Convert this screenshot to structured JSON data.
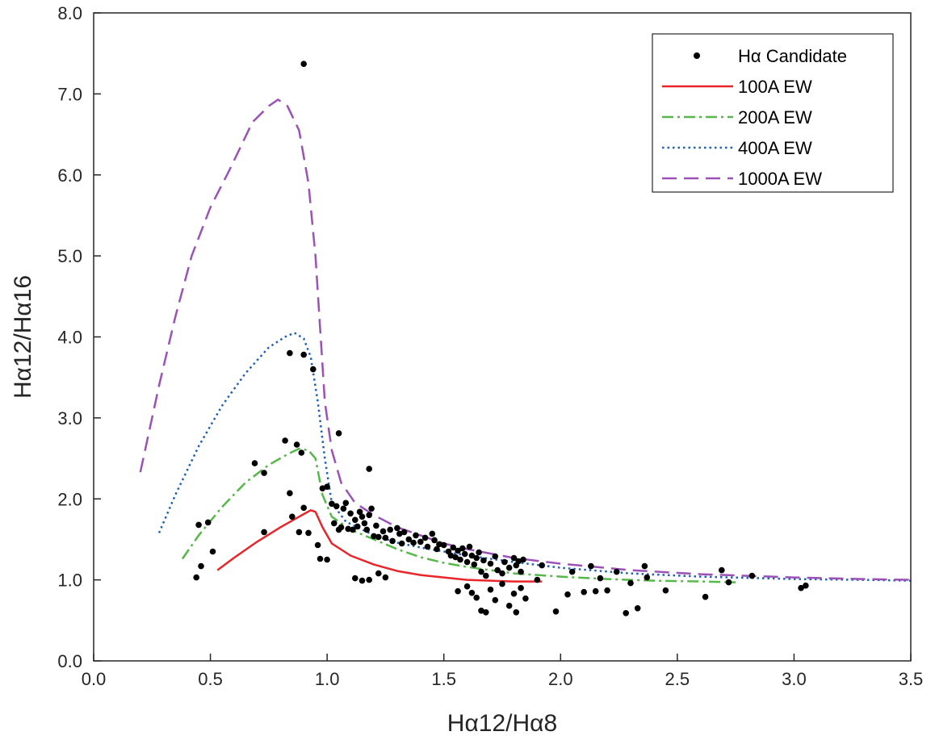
{
  "chart_data": {
    "type": "scatter",
    "title": "",
    "xlabel": "Hα12/Hα8",
    "ylabel": "Hα12/Hα16",
    "xlim": [
      0.0,
      3.5
    ],
    "ylim": [
      0.0,
      8.0
    ],
    "x_ticks": [
      "0.0",
      "0.5",
      "1.0",
      "1.5",
      "2.0",
      "2.5",
      "3.0",
      "3.5"
    ],
    "y_ticks": [
      "0.0",
      "1.0",
      "2.0",
      "3.0",
      "4.0",
      "5.0",
      "6.0",
      "7.0",
      "8.0"
    ],
    "grid": false,
    "legend_position": "top-right",
    "series": [
      {
        "name": "Hα Candidate",
        "kind": "points",
        "color": "#000000",
        "points": [
          [
            0.9,
            7.37
          ],
          [
            0.84,
            3.8
          ],
          [
            0.9,
            3.78
          ],
          [
            0.94,
            3.6
          ],
          [
            0.82,
            2.72
          ],
          [
            0.73,
            2.32
          ],
          [
            0.69,
            2.44
          ],
          [
            0.87,
            2.67
          ],
          [
            0.89,
            2.57
          ],
          [
            1.05,
            2.81
          ],
          [
            1.18,
            2.37
          ],
          [
            0.84,
            2.07
          ],
          [
            0.88,
            1.59
          ],
          [
            0.73,
            1.59
          ],
          [
            0.85,
            1.78
          ],
          [
            0.9,
            1.89
          ],
          [
            0.92,
            1.58
          ],
          [
            0.96,
            1.43
          ],
          [
            0.98,
            2.13
          ],
          [
            1.0,
            2.15
          ],
          [
            1.02,
            1.94
          ],
          [
            0.97,
            1.26
          ],
          [
            1.0,
            1.25
          ],
          [
            0.44,
            1.03
          ],
          [
            0.45,
            1.68
          ],
          [
            0.46,
            1.17
          ],
          [
            0.49,
            1.71
          ],
          [
            0.51,
            1.35
          ],
          [
            1.03,
            1.7
          ],
          [
            1.04,
            1.91
          ],
          [
            1.05,
            1.62
          ],
          [
            1.06,
            1.65
          ],
          [
            1.07,
            1.88
          ],
          [
            1.08,
            1.95
          ],
          [
            1.09,
            1.63
          ],
          [
            1.1,
            1.82
          ],
          [
            1.11,
            1.62
          ],
          [
            1.12,
            1.74
          ],
          [
            1.13,
            1.66
          ],
          [
            1.14,
            1.84
          ],
          [
            1.15,
            1.78
          ],
          [
            1.16,
            1.7
          ],
          [
            1.17,
            1.62
          ],
          [
            1.18,
            1.8
          ],
          [
            1.19,
            1.88
          ],
          [
            1.2,
            1.54
          ],
          [
            1.21,
            1.67
          ],
          [
            1.22,
            1.53
          ],
          [
            1.24,
            1.6
          ],
          [
            1.25,
            1.52
          ],
          [
            1.27,
            1.62
          ],
          [
            1.28,
            1.48
          ],
          [
            1.3,
            1.64
          ],
          [
            1.31,
            1.57
          ],
          [
            1.32,
            1.45
          ],
          [
            1.33,
            1.59
          ],
          [
            1.35,
            1.5
          ],
          [
            1.37,
            1.46
          ],
          [
            1.38,
            1.55
          ],
          [
            1.4,
            1.47
          ],
          [
            1.42,
            1.52
          ],
          [
            1.43,
            1.41
          ],
          [
            1.45,
            1.57
          ],
          [
            1.46,
            1.49
          ],
          [
            1.47,
            1.38
          ],
          [
            1.48,
            1.44
          ],
          [
            1.5,
            1.43
          ],
          [
            1.52,
            1.35
          ],
          [
            1.53,
            1.3
          ],
          [
            1.54,
            1.4
          ],
          [
            1.55,
            1.28
          ],
          [
            1.56,
            1.36
          ],
          [
            1.57,
            1.25
          ],
          [
            1.58,
            1.39
          ],
          [
            1.59,
            1.32
          ],
          [
            1.6,
            1.22
          ],
          [
            1.61,
            1.41
          ],
          [
            1.62,
            1.3
          ],
          [
            1.63,
            1.19
          ],
          [
            1.64,
            1.27
          ],
          [
            1.65,
            1.34
          ],
          [
            1.66,
            1.1
          ],
          [
            1.67,
            1.24
          ],
          [
            1.68,
            1.05
          ],
          [
            1.7,
            1.2
          ],
          [
            1.72,
            1.29
          ],
          [
            1.73,
            1.12
          ],
          [
            1.75,
            1.08
          ],
          [
            1.76,
            1.22
          ],
          [
            1.78,
            1.15
          ],
          [
            1.8,
            1.27
          ],
          [
            1.81,
            1.18
          ],
          [
            1.82,
            1.23
          ],
          [
            1.83,
            1.1
          ],
          [
            1.84,
            1.25
          ],
          [
            1.12,
            1.02
          ],
          [
            1.15,
            0.99
          ],
          [
            1.18,
            1.0
          ],
          [
            1.22,
            1.08
          ],
          [
            1.25,
            1.03
          ],
          [
            1.56,
            0.86
          ],
          [
            1.6,
            0.92
          ],
          [
            1.62,
            0.84
          ],
          [
            1.64,
            0.78
          ],
          [
            1.66,
            0.62
          ],
          [
            1.68,
            0.6
          ],
          [
            1.7,
            0.88
          ],
          [
            1.72,
            0.75
          ],
          [
            1.75,
            0.95
          ],
          [
            1.78,
            0.68
          ],
          [
            1.8,
            0.83
          ],
          [
            1.81,
            0.6
          ],
          [
            1.83,
            0.9
          ],
          [
            1.85,
            0.77
          ],
          [
            1.9,
            1.0
          ],
          [
            1.92,
            1.18
          ],
          [
            1.98,
            0.61
          ],
          [
            2.03,
            0.82
          ],
          [
            2.05,
            1.1
          ],
          [
            2.1,
            0.85
          ],
          [
            2.13,
            1.17
          ],
          [
            2.15,
            0.86
          ],
          [
            2.17,
            1.02
          ],
          [
            2.2,
            0.87
          ],
          [
            2.24,
            1.1
          ],
          [
            2.28,
            0.59
          ],
          [
            2.3,
            0.96
          ],
          [
            2.33,
            0.65
          ],
          [
            2.36,
            1.17
          ],
          [
            2.37,
            1.03
          ],
          [
            2.45,
            0.87
          ],
          [
            2.62,
            0.79
          ],
          [
            2.69,
            1.12
          ],
          [
            2.72,
            0.97
          ],
          [
            2.82,
            1.05
          ],
          [
            3.03,
            0.9
          ],
          [
            3.05,
            0.93
          ]
        ]
      },
      {
        "name": "100A EW",
        "kind": "line",
        "style": "solid",
        "color": "#e8262a",
        "points": [
          [
            0.53,
            1.12
          ],
          [
            0.6,
            1.27
          ],
          [
            0.7,
            1.47
          ],
          [
            0.8,
            1.65
          ],
          [
            0.88,
            1.78
          ],
          [
            0.93,
            1.86
          ],
          [
            0.95,
            1.84
          ],
          [
            0.98,
            1.65
          ],
          [
            1.02,
            1.45
          ],
          [
            1.1,
            1.3
          ],
          [
            1.2,
            1.19
          ],
          [
            1.3,
            1.11
          ],
          [
            1.4,
            1.06
          ],
          [
            1.5,
            1.03
          ],
          [
            1.6,
            1.0
          ],
          [
            1.7,
            0.99
          ],
          [
            1.8,
            0.98
          ],
          [
            1.92,
            0.98
          ]
        ]
      },
      {
        "name": "200A EW",
        "kind": "line",
        "style": "dashdot",
        "color": "#55b848",
        "points": [
          [
            0.38,
            1.26
          ],
          [
            0.45,
            1.55
          ],
          [
            0.55,
            1.9
          ],
          [
            0.65,
            2.2
          ],
          [
            0.75,
            2.42
          ],
          [
            0.83,
            2.55
          ],
          [
            0.88,
            2.62
          ],
          [
            0.92,
            2.6
          ],
          [
            0.95,
            2.5
          ],
          [
            0.98,
            2.05
          ],
          [
            1.02,
            1.78
          ],
          [
            1.1,
            1.62
          ],
          [
            1.2,
            1.5
          ],
          [
            1.3,
            1.38
          ],
          [
            1.4,
            1.28
          ],
          [
            1.5,
            1.21
          ],
          [
            1.6,
            1.16
          ],
          [
            1.7,
            1.12
          ],
          [
            1.8,
            1.08
          ],
          [
            2.0,
            1.04
          ],
          [
            2.2,
            1.01
          ],
          [
            2.4,
            0.99
          ],
          [
            2.6,
            0.98
          ],
          [
            2.75,
            0.97
          ]
        ]
      },
      {
        "name": "400A EW",
        "kind": "line",
        "style": "dotted",
        "color": "#1f5fb4",
        "points": [
          [
            0.28,
            1.58
          ],
          [
            0.35,
            2.05
          ],
          [
            0.45,
            2.65
          ],
          [
            0.55,
            3.15
          ],
          [
            0.65,
            3.55
          ],
          [
            0.75,
            3.87
          ],
          [
            0.82,
            4.0
          ],
          [
            0.86,
            4.05
          ],
          [
            0.9,
            3.98
          ],
          [
            0.93,
            3.75
          ],
          [
            0.96,
            3.2
          ],
          [
            0.99,
            2.5
          ],
          [
            1.02,
            1.95
          ],
          [
            1.08,
            1.72
          ],
          [
            1.2,
            1.55
          ],
          [
            1.3,
            1.46
          ],
          [
            1.4,
            1.4
          ],
          [
            1.6,
            1.3
          ],
          [
            1.8,
            1.22
          ],
          [
            2.0,
            1.15
          ],
          [
            2.3,
            1.08
          ],
          [
            2.6,
            1.04
          ],
          [
            3.0,
            1.01
          ],
          [
            3.3,
            1.0
          ],
          [
            3.5,
            0.99
          ]
        ]
      },
      {
        "name": "1000A EW",
        "kind": "line",
        "style": "dashed",
        "color": "#9c51b6",
        "points": [
          [
            0.2,
            2.33
          ],
          [
            0.28,
            3.4
          ],
          [
            0.35,
            4.25
          ],
          [
            0.42,
            5.0
          ],
          [
            0.5,
            5.6
          ],
          [
            0.58,
            6.05
          ],
          [
            0.68,
            6.65
          ],
          [
            0.75,
            6.85
          ],
          [
            0.79,
            6.93
          ],
          [
            0.83,
            6.85
          ],
          [
            0.88,
            6.55
          ],
          [
            0.92,
            5.9
          ],
          [
            0.95,
            5.0
          ],
          [
            0.97,
            4.1
          ],
          [
            0.99,
            3.2
          ],
          [
            1.02,
            2.6
          ],
          [
            1.06,
            2.2
          ],
          [
            1.12,
            1.95
          ],
          [
            1.2,
            1.8
          ],
          [
            1.3,
            1.65
          ],
          [
            1.4,
            1.55
          ],
          [
            1.5,
            1.45
          ],
          [
            1.6,
            1.38
          ],
          [
            1.8,
            1.27
          ],
          [
            2.0,
            1.2
          ],
          [
            2.3,
            1.12
          ],
          [
            2.6,
            1.07
          ],
          [
            3.0,
            1.03
          ],
          [
            3.3,
            1.01
          ],
          [
            3.5,
            1.0
          ]
        ]
      }
    ]
  }
}
